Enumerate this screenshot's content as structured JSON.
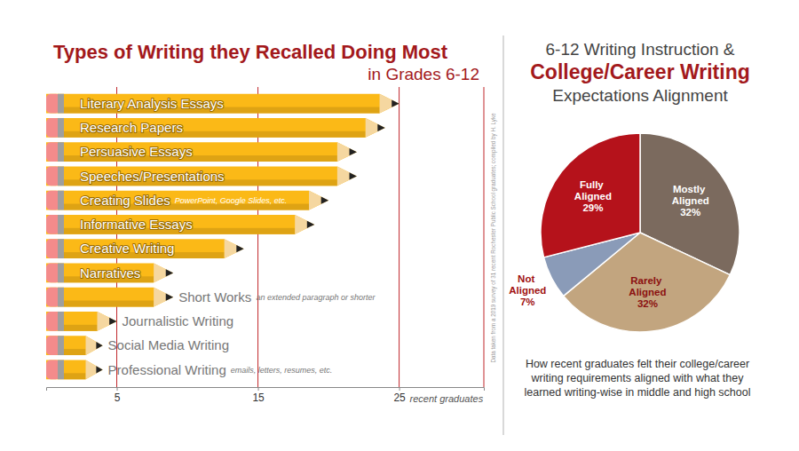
{
  "chart_data": [
    {
      "type": "bar",
      "orientation": "horizontal",
      "title": [
        "Types of Writing they Recalled Doing Most",
        "in Grades 6-12"
      ],
      "categories": [
        "Literary Analysis Essays",
        "Research Papers",
        "Persuasive Essays",
        "Speeches/Presentations",
        "Creating Slides",
        "Informative Essays",
        "Creative Writing",
        "Narratives",
        "Short Works",
        "Journalistic Writing",
        "Social Media Writing",
        "Professional Writing"
      ],
      "values": [
        25,
        24,
        22,
        22,
        20,
        19,
        14,
        9,
        9,
        5,
        4,
        4
      ],
      "color": "#fbb917",
      "xlim": [
        0,
        31
      ],
      "xticks": [
        5,
        15,
        25
      ],
      "xlabel": "recent graduates",
      "grid": true,
      "annotations": [
        {
          "text": "PowerPoint, Google Slides, etc.",
          "category": "Creating Slides"
        },
        {
          "text": "an extended paragraph or shorter",
          "category": "Short Works"
        },
        {
          "text": "emails, letters, resumes, etc.",
          "category": "Professional Writing"
        },
        {
          "text": "Data taken from a 2019 survey of 31 recent Rochester Public School graduates; compiled by H. Lyke"
        }
      ]
    },
    {
      "type": "pie",
      "title": [
        "6-12 Writing Instruction &",
        "College/Career Writing",
        "Expectations Alignment"
      ],
      "categories": [
        "Mostly Aligned",
        "Rarely Aligned",
        "Not Aligned",
        "Fully Aligned"
      ],
      "values": [
        32,
        32,
        7,
        29
      ],
      "value_labels": [
        "32%",
        "32%",
        "7%",
        "29%"
      ],
      "colors": [
        "#7b6a5e",
        "#c2a57f",
        "#8a9bb8",
        "#b5121b"
      ],
      "data_labels": true,
      "annotations": [
        "How recent graduates felt their college/career",
        "writing requirements aligned with what they",
        "learned writing-wise in middle and high school"
      ]
    }
  ]
}
